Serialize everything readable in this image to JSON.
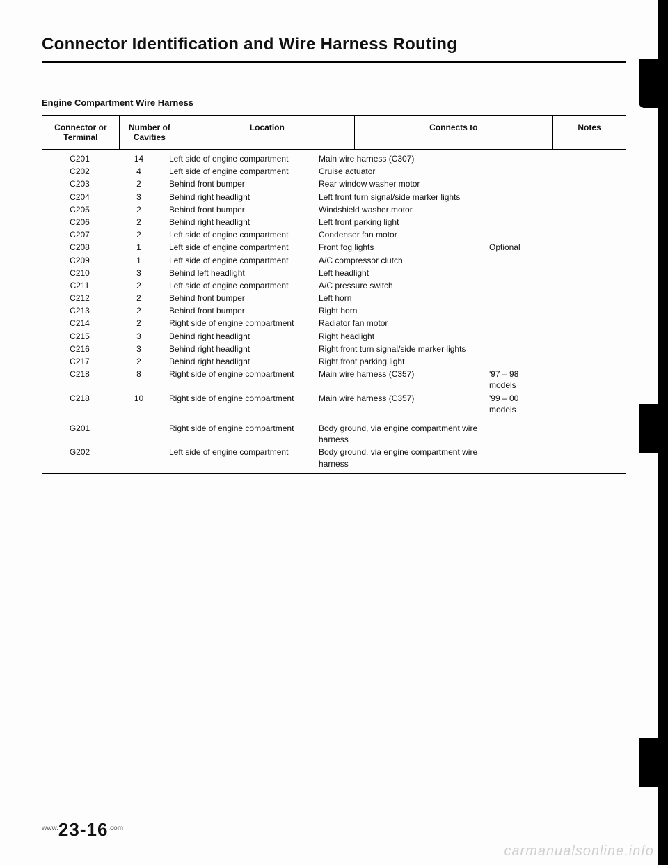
{
  "title": "Connector Identification and Wire Harness Routing",
  "subhead": "Engine Compartment Wire Harness",
  "columns": {
    "connector": "Connector or Terminal",
    "cavities": "Number of Cavities",
    "location": "Location",
    "connects": "Connects to",
    "notes": "Notes"
  },
  "group1": [
    {
      "conn": "C201",
      "cav": "14",
      "loc": "Left side of engine compartment",
      "to": "Main wire harness (C307)",
      "note": ""
    },
    {
      "conn": "C202",
      "cav": "4",
      "loc": "Left side of engine compartment",
      "to": "Cruise actuator",
      "note": ""
    },
    {
      "conn": "C203",
      "cav": "2",
      "loc": "Behind front bumper",
      "to": "Rear window washer motor",
      "note": ""
    },
    {
      "conn": "C204",
      "cav": "3",
      "loc": "Behind right headlight",
      "to": "Left front turn signal/side marker lights",
      "note": ""
    },
    {
      "conn": "C205",
      "cav": "2",
      "loc": "Behind front bumper",
      "to": "Windshield washer motor",
      "note": ""
    },
    {
      "conn": "C206",
      "cav": "2",
      "loc": "Behind right headlight",
      "to": "Left front parking light",
      "note": ""
    },
    {
      "conn": "C207",
      "cav": "2",
      "loc": "Left side of engine compartment",
      "to": "Condenser fan motor",
      "note": ""
    },
    {
      "conn": "C208",
      "cav": "1",
      "loc": "Left side of engine compartment",
      "to": "Front fog lights",
      "note": "Optional"
    },
    {
      "conn": "C209",
      "cav": "1",
      "loc": "Left side of engine compartment",
      "to": "A/C compressor clutch",
      "note": ""
    },
    {
      "conn": "C210",
      "cav": "3",
      "loc": "Behind left headlight",
      "to": "Left headlight",
      "note": ""
    },
    {
      "conn": "C211",
      "cav": "2",
      "loc": "Left side of engine compartment",
      "to": "A/C pressure switch",
      "note": ""
    },
    {
      "conn": "C212",
      "cav": "2",
      "loc": "Behind front bumper",
      "to": "Left horn",
      "note": ""
    },
    {
      "conn": "C213",
      "cav": "2",
      "loc": "Behind front bumper",
      "to": "Right horn",
      "note": ""
    },
    {
      "conn": "C214",
      "cav": "2",
      "loc": "Right side of engine compartment",
      "to": "Radiator fan motor",
      "note": ""
    },
    {
      "conn": "C215",
      "cav": "3",
      "loc": "Behind right headlight",
      "to": "Right headlight",
      "note": ""
    },
    {
      "conn": "C216",
      "cav": "3",
      "loc": "Behind right headlight",
      "to": "Right front turn signal/side marker lights",
      "note": ""
    },
    {
      "conn": "C217",
      "cav": "2",
      "loc": "Behind right headlight",
      "to": "Right front parking light",
      "note": ""
    },
    {
      "conn": "C218",
      "cav": "8",
      "loc": "Right side of engine compartment",
      "to": "Main wire harness (C357)",
      "note": "'97 – 98 models"
    },
    {
      "conn": "C218",
      "cav": "10",
      "loc": "Right side of engine compartment",
      "to": "Main wire harness (C357)",
      "note": "'99 – 00 models"
    }
  ],
  "group2": [
    {
      "conn": "G201",
      "cav": "",
      "loc": "Right side of engine compartment",
      "to": "Body ground, via engine compartment wire harness",
      "note": ""
    },
    {
      "conn": "G202",
      "cav": "",
      "loc": "Left side of engine compartment",
      "to": "Body ground, via engine compartment wire harness",
      "note": ""
    }
  ],
  "page_number": "23-16",
  "page_prefix": "www.",
  "page_suffix": ".com",
  "watermark": "carmanualsonline.info"
}
